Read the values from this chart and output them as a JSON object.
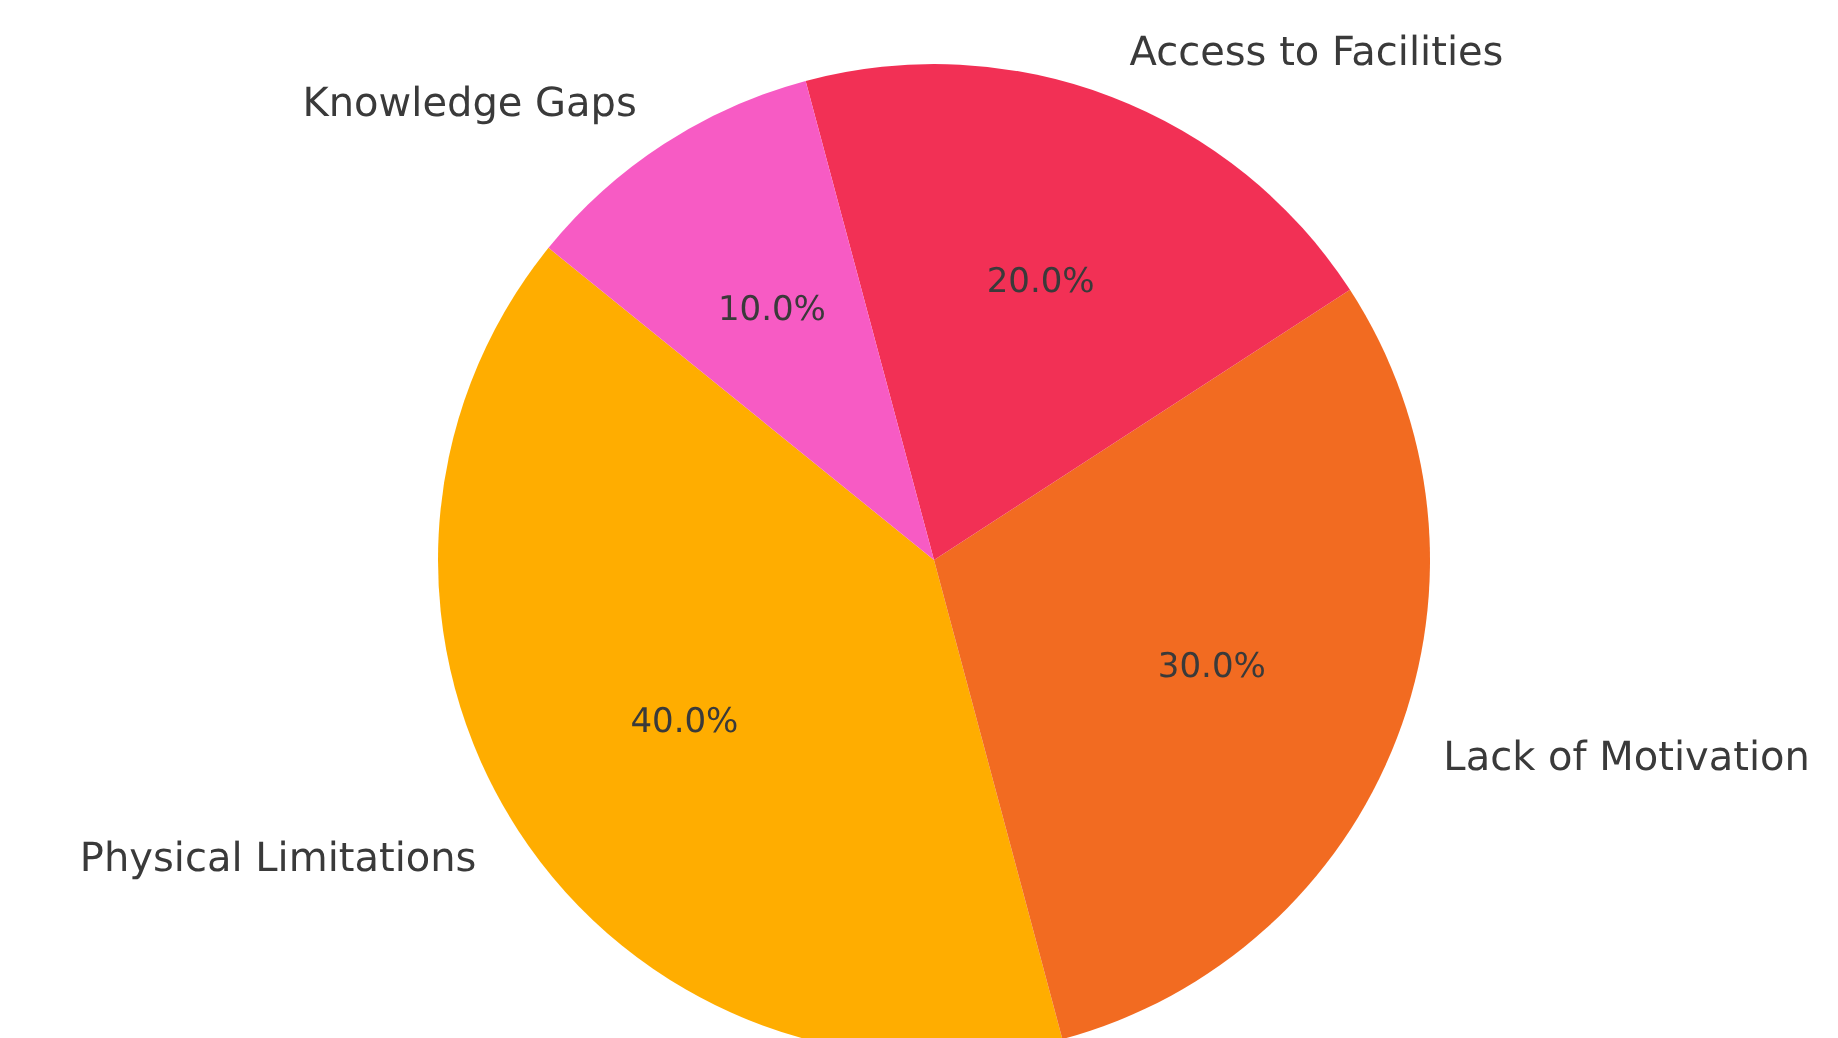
{
  "chart_data": {
    "type": "pie",
    "categories": [
      "Physical Limitations",
      "Lack of Motivation",
      "Access to Facilities",
      "Knowledge Gaps"
    ],
    "values": [
      40,
      30,
      20,
      10
    ],
    "colors": [
      "#ffad00",
      "#f26b21",
      "#f23055",
      "#f75bc4"
    ],
    "value_labels": [
      "40.0%",
      "30.0%",
      "20.0%",
      "10.0%"
    ],
    "legend": false
  }
}
